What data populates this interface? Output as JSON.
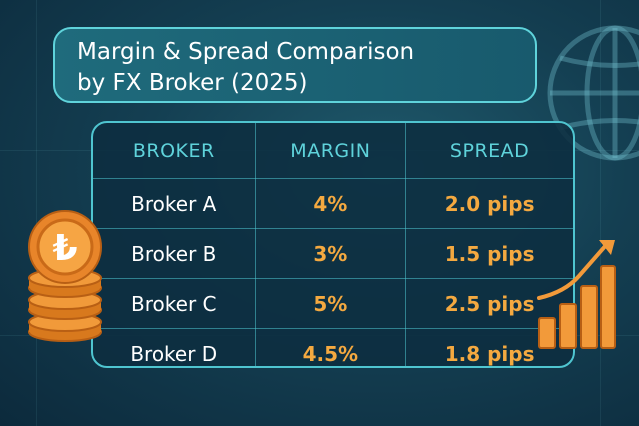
{
  "title": {
    "line1": "Margin & Spread Comparison",
    "line2": "by FX Broker (2025)"
  },
  "table": {
    "headers": {
      "broker": "BROKER",
      "margin": "MARGIN",
      "spread": "SPREAD"
    },
    "rows": [
      {
        "broker": "Broker A",
        "margin": "4%",
        "spread": "2.0 pips"
      },
      {
        "broker": "Broker B",
        "margin": "3%",
        "spread": "1.5 pips"
      },
      {
        "broker": "Broker C",
        "margin": "5%",
        "spread": "2.5 pips"
      },
      {
        "broker": "Broker D",
        "margin": "4.5%",
        "spread": "1.8 pips"
      }
    ]
  },
  "icons": {
    "coin_stack": "lira-coin-stack-icon",
    "globe": "globe-icon",
    "growth_chart": "bar-chart-growth-icon",
    "coin_symbol": "₺"
  },
  "colors": {
    "header_text": "#5fd3db",
    "value_text": "#f4a940",
    "broker_text": "#ffffff",
    "border": "#4fc5d0"
  }
}
